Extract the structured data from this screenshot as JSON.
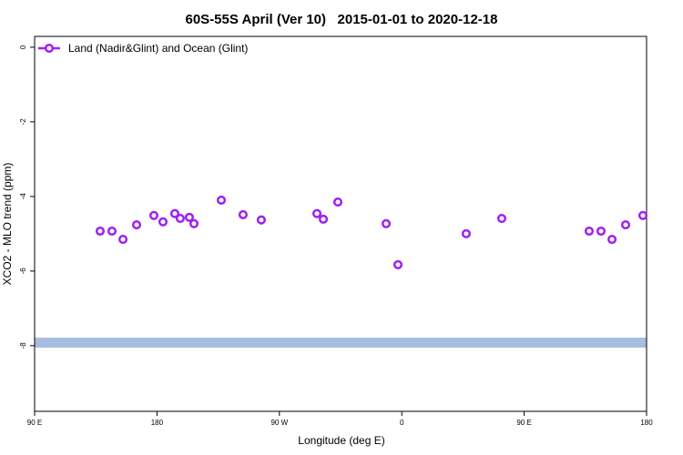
{
  "chart_data": {
    "type": "scatter",
    "title": "60S-55S April (Ver 10)   2015-01-01 to 2020-12-18",
    "x_label": "Longitude (deg E)",
    "y_label": "XCO2 - MLO trend (ppm)",
    "legend_position": "top-left",
    "xlim": [
      90,
      540
    ],
    "ylim": [
      -9.76,
      0.29
    ],
    "xticks": [
      {
        "value": 90,
        "label": "90 E"
      },
      180,
      {
        "value": 270,
        "label": "90 W"
      },
      {
        "value": 360,
        "label": "0"
      },
      {
        "value": 450,
        "label": "90 E"
      },
      {
        "value": 540,
        "label": "180"
      }
    ],
    "yticks": [
      0,
      -2,
      -4,
      -6,
      -8
    ],
    "series": [
      {
        "name": "Land (Nadir&Glint) and Ocean (Glint)",
        "color": "#a020f0",
        "x": [
          138.2,
          146.9,
          155,
          165,
          177.7,
          184.4,
          193.1,
          197.1,
          203.8,
          207.2,
          227.3,
          243.3,
          256.7,
          297.6,
          302.3,
          313,
          348.5,
          357.2,
          407.4,
          433.5,
          497.8,
          506.5,
          514.6,
          524.6,
          537.3
        ],
        "values": [
          -4.93,
          -4.93,
          -5.15,
          -4.76,
          -4.51,
          -4.68,
          -4.46,
          -4.59,
          -4.56,
          -4.73,
          -4.1,
          -4.49,
          -4.63,
          -4.46,
          -4.61,
          -4.15,
          -4.73,
          -5.83,
          -5.0,
          -4.59,
          -4.93,
          -4.93,
          -5.15,
          -4.76,
          -4.51
        ]
      }
    ]
  }
}
